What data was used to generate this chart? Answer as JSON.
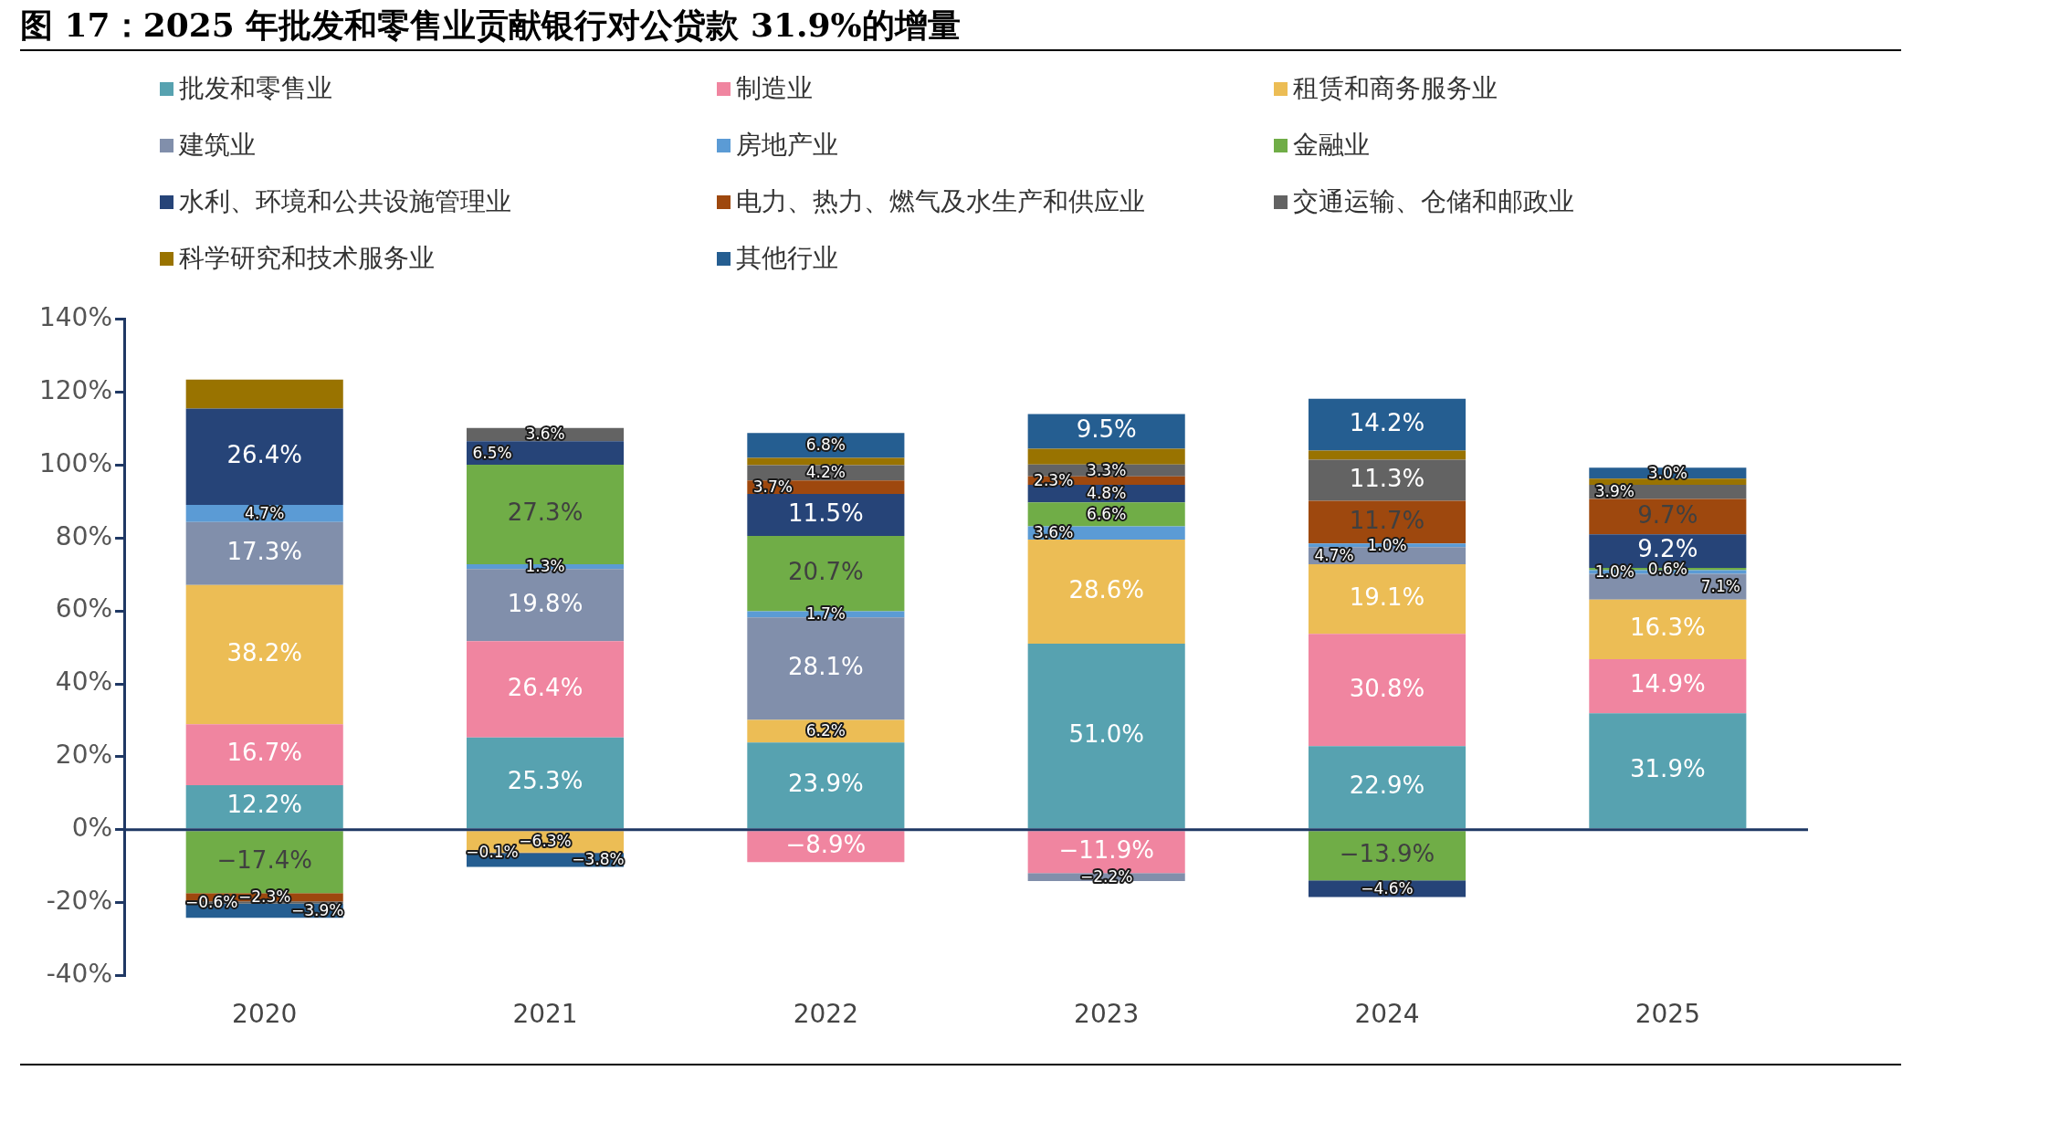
{
  "chart_data": {
    "type": "bar",
    "stacked": true,
    "title": "图 17：2025 年批发和零售业贡献银行对公贷款 31.9%的增量",
    "categories": [
      "2020",
      "2021",
      "2022",
      "2023",
      "2024",
      "2025"
    ],
    "series": [
      {
        "name": "批发和零售业",
        "color": "#57a2b0",
        "values": [
          12.2,
          25.3,
          23.9,
          51.0,
          22.9,
          31.9
        ],
        "value_labels": [
          "12.2%",
          "25.3%",
          "23.9%",
          "51.0%",
          "22.9%",
          "31.9%"
        ]
      },
      {
        "name": "制造业",
        "color": "#f085a0",
        "values": [
          16.7,
          26.4,
          -8.9,
          -11.9,
          30.8,
          14.9
        ],
        "value_labels": [
          "16.7%",
          "26.4%",
          "−8.9%",
          "−11.9%",
          "30.8%",
          "14.9%"
        ]
      },
      {
        "name": "租赁和商务服务业",
        "color": "#ecbd55",
        "values": [
          38.2,
          -6.3,
          6.2,
          28.6,
          19.1,
          16.3
        ],
        "value_labels": [
          "38.2%",
          "−6.3%",
          "6.2%",
          "28.6%",
          "19.1%",
          "16.3%"
        ]
      },
      {
        "name": "建筑业",
        "color": "#818fab",
        "values": [
          17.3,
          19.8,
          28.1,
          -2.2,
          4.7,
          7.1
        ],
        "value_labels": [
          "17.3%",
          "19.8%",
          "28.1%",
          "−2.2%",
          "4.7%",
          "7.1%"
        ]
      },
      {
        "name": "房地产业",
        "color": "#5b9bd5",
        "values": [
          4.7,
          1.3,
          1.7,
          3.6,
          1.0,
          1.0
        ],
        "value_labels": [
          "4.7%",
          "1.3%",
          "1.7%",
          "3.6%",
          "1.0%",
          "1.0%"
        ]
      },
      {
        "name": "金融业",
        "color": "#70ad47",
        "values": [
          -17.4,
          27.3,
          20.7,
          6.6,
          -13.9,
          0.6
        ],
        "value_labels": [
          "−17.4%",
          "27.3%",
          "20.7%",
          "6.6%",
          "−13.9%",
          "0.6%"
        ]
      },
      {
        "name": "水利、环境和公共设施管理业",
        "color": "#264478",
        "values": [
          26.4,
          6.5,
          11.5,
          4.8,
          -4.6,
          9.2
        ],
        "value_labels": [
          "26.4%",
          "6.5%",
          "11.5%",
          "4.8%",
          "−4.6%",
          "9.2%"
        ]
      },
      {
        "name": "电力、热力、燃气及水生产和供应业",
        "color": "#9e480e",
        "values": [
          -2.3,
          -0.1,
          3.7,
          2.3,
          11.7,
          9.7
        ],
        "value_labels": [
          "−2.3%",
          "−0.1%",
          "3.7%",
          "2.3%",
          "11.7%",
          "9.7%"
        ]
      },
      {
        "name": "交通运输、仓储和邮政业",
        "color": "#636363",
        "values": [
          -0.6,
          3.6,
          4.2,
          3.3,
          11.3,
          3.9
        ],
        "value_labels": [
          "−0.6%",
          "3.6%",
          "4.2%",
          "3.3%",
          "11.3%",
          "3.9%"
        ]
      },
      {
        "name": "科学研究和技术服务业",
        "color": "#997300",
        "values": [
          8.0,
          null,
          2.0,
          4.3,
          2.5,
          1.7
        ],
        "value_labels": [
          null,
          null,
          null,
          null,
          null,
          null
        ]
      },
      {
        "name": "其他行业",
        "color": "#255e91",
        "values": [
          -3.9,
          -3.8,
          6.8,
          9.5,
          14.2,
          3.0
        ],
        "value_labels": [
          "−3.9%",
          "−3.8%",
          "6.8%",
          "9.5%",
          "14.2%",
          "3.0%"
        ]
      }
    ],
    "ylim": [
      -40,
      140
    ],
    "yticks": [
      {
        "value": -40,
        "label": "-40%"
      },
      {
        "value": -20,
        "label": "-20%"
      },
      {
        "value": 0,
        "label": "0%"
      },
      {
        "value": 20,
        "label": "20%"
      },
      {
        "value": 40,
        "label": "40%"
      },
      {
        "value": 60,
        "label": "60%"
      },
      {
        "value": 80,
        "label": "80%"
      },
      {
        "value": 100,
        "label": "100%"
      },
      {
        "value": 120,
        "label": "120%"
      },
      {
        "value": 140,
        "label": "140%"
      }
    ],
    "ref_lines": [
      {
        "axis": "y",
        "value": 0,
        "color": "#1f3864"
      }
    ],
    "legend": "top",
    "grid": false
  }
}
